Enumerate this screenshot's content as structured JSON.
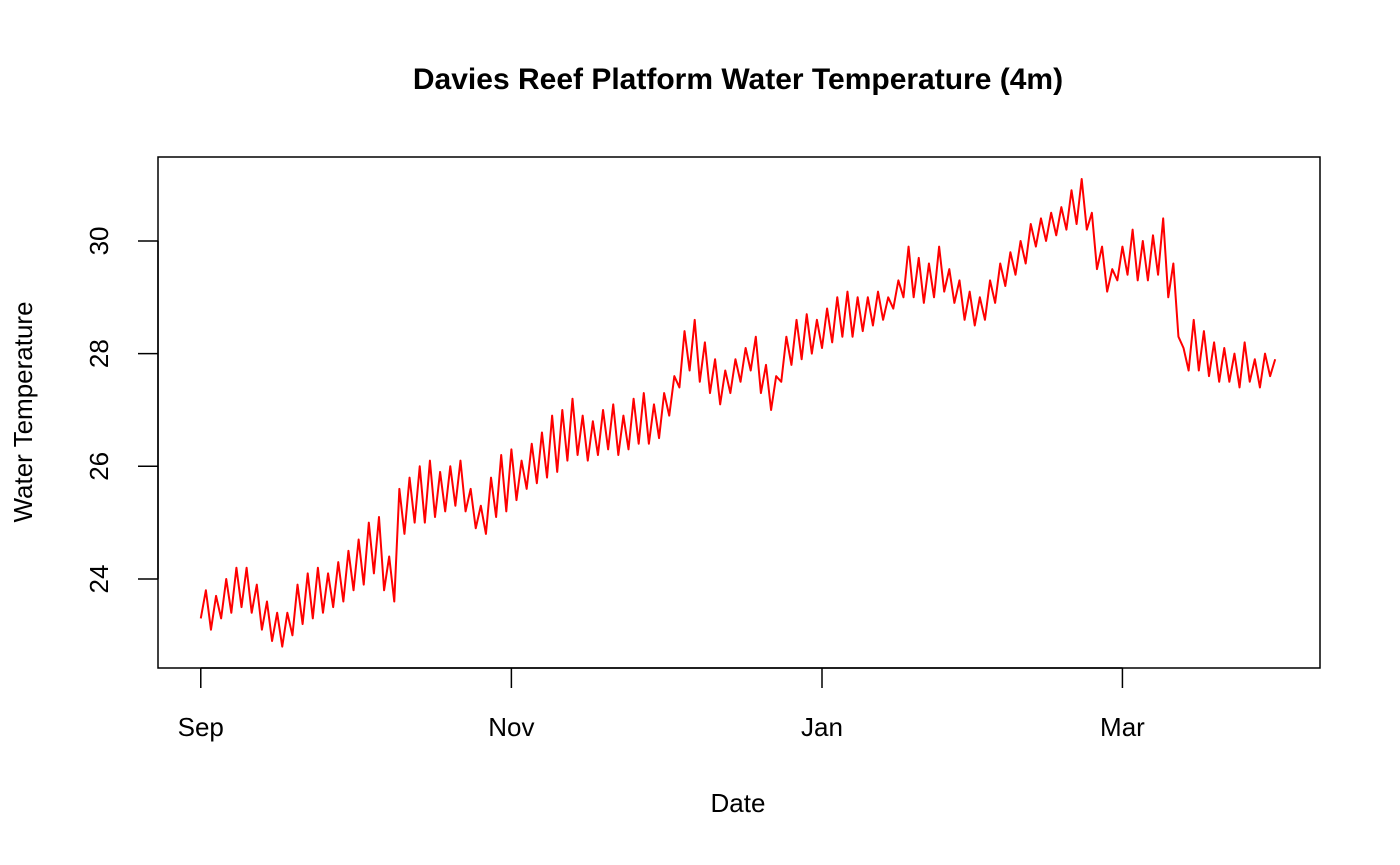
{
  "chart_data": {
    "type": "line",
    "title": "Davies Reef Platform Water Temperature (4m)",
    "x_label": "Date",
    "y_label": "Water Temperature",
    "color": "#ff0000",
    "xlim": [
      -8.4,
      219.8
    ],
    "xticks": [
      {
        "value": 0,
        "label": "Sep"
      },
      {
        "value": 61,
        "label": "Nov"
      },
      {
        "value": 122,
        "label": "Jan"
      },
      {
        "value": 181,
        "label": "Mar"
      }
    ],
    "ylim": [
      22.42,
      31.49
    ],
    "yticks": [
      24,
      26,
      28,
      30
    ],
    "x": [
      0,
      1,
      2,
      3,
      4,
      5,
      6,
      7,
      8,
      9,
      10,
      11,
      12,
      13,
      14,
      15,
      16,
      17,
      18,
      19,
      20,
      21,
      22,
      23,
      24,
      25,
      26,
      27,
      28,
      29,
      30,
      31,
      32,
      33,
      34,
      35,
      36,
      37,
      38,
      39,
      40,
      41,
      42,
      43,
      44,
      45,
      46,
      47,
      48,
      49,
      50,
      51,
      52,
      53,
      54,
      55,
      56,
      57,
      58,
      59,
      60,
      61,
      62,
      63,
      64,
      65,
      66,
      67,
      68,
      69,
      70,
      71,
      72,
      73,
      74,
      75,
      76,
      77,
      78,
      79,
      80,
      81,
      82,
      83,
      84,
      85,
      86,
      87,
      88,
      89,
      90,
      91,
      92,
      93,
      94,
      95,
      96,
      97,
      98,
      99,
      100,
      101,
      102,
      103,
      104,
      105,
      106,
      107,
      108,
      109,
      110,
      111,
      112,
      113,
      114,
      115,
      116,
      117,
      118,
      119,
      120,
      121,
      122,
      123,
      124,
      125,
      126,
      127,
      128,
      129,
      130,
      131,
      132,
      133,
      134,
      135,
      136,
      137,
      138,
      139,
      140,
      141,
      142,
      143,
      144,
      145,
      146,
      147,
      148,
      149,
      150,
      151,
      152,
      153,
      154,
      155,
      156,
      157,
      158,
      159,
      160,
      161,
      162,
      163,
      164,
      165,
      166,
      167,
      168,
      169,
      170,
      171,
      172,
      173,
      174,
      175,
      176,
      177,
      178,
      179,
      180,
      181,
      182,
      183,
      184,
      185,
      186,
      187,
      188,
      189,
      190,
      191,
      192,
      193,
      194,
      195,
      196,
      197,
      198,
      199,
      200,
      201,
      202,
      203,
      204,
      205,
      206,
      207,
      208,
      209,
      210,
      211
    ],
    "values": [
      23.3,
      23.8,
      23.1,
      23.7,
      23.3,
      24.0,
      23.4,
      24.2,
      23.5,
      24.2,
      23.4,
      23.9,
      23.1,
      23.6,
      22.9,
      23.4,
      22.8,
      23.4,
      23.0,
      23.9,
      23.2,
      24.1,
      23.3,
      24.2,
      23.4,
      24.1,
      23.5,
      24.3,
      23.6,
      24.5,
      23.8,
      24.7,
      23.9,
      25.0,
      24.1,
      25.1,
      23.8,
      24.4,
      23.6,
      25.6,
      24.8,
      25.8,
      25.0,
      26.0,
      25.0,
      26.1,
      25.1,
      25.9,
      25.2,
      26.0,
      25.3,
      26.1,
      25.2,
      25.6,
      24.9,
      25.3,
      24.8,
      25.8,
      25.1,
      26.2,
      25.2,
      26.3,
      25.4,
      26.1,
      25.6,
      26.4,
      25.7,
      26.6,
      25.8,
      26.9,
      25.9,
      27.0,
      26.1,
      27.2,
      26.2,
      26.9,
      26.1,
      26.8,
      26.2,
      27.0,
      26.3,
      27.1,
      26.2,
      26.9,
      26.3,
      27.2,
      26.4,
      27.3,
      26.4,
      27.1,
      26.5,
      27.3,
      26.9,
      27.6,
      27.4,
      28.4,
      27.7,
      28.6,
      27.5,
      28.2,
      27.3,
      27.9,
      27.1,
      27.7,
      27.3,
      27.9,
      27.5,
      28.1,
      27.7,
      28.3,
      27.3,
      27.8,
      27.0,
      27.6,
      27.5,
      28.3,
      27.8,
      28.6,
      27.9,
      28.7,
      28.0,
      28.6,
      28.1,
      28.8,
      28.2,
      29.0,
      28.3,
      29.1,
      28.3,
      29.0,
      28.4,
      29.0,
      28.5,
      29.1,
      28.6,
      29.0,
      28.8,
      29.3,
      29.0,
      29.9,
      29.0,
      29.7,
      28.9,
      29.6,
      29.0,
      29.9,
      29.1,
      29.5,
      28.9,
      29.3,
      28.6,
      29.1,
      28.5,
      29.0,
      28.6,
      29.3,
      28.9,
      29.6,
      29.2,
      29.8,
      29.4,
      30.0,
      29.6,
      30.3,
      29.9,
      30.4,
      30.0,
      30.5,
      30.1,
      30.6,
      30.2,
      30.9,
      30.3,
      31.1,
      30.2,
      30.5,
      29.5,
      29.9,
      29.1,
      29.5,
      29.3,
      29.9,
      29.4,
      30.2,
      29.3,
      30.0,
      29.3,
      30.1,
      29.4,
      30.4,
      29.0,
      29.6,
      28.3,
      28.1,
      27.7,
      28.6,
      27.7,
      28.4,
      27.6,
      28.2,
      27.5,
      28.1,
      27.5,
      28.0,
      27.4,
      28.2,
      27.5,
      27.9,
      27.4,
      28.0,
      27.6,
      27.9
    ]
  }
}
